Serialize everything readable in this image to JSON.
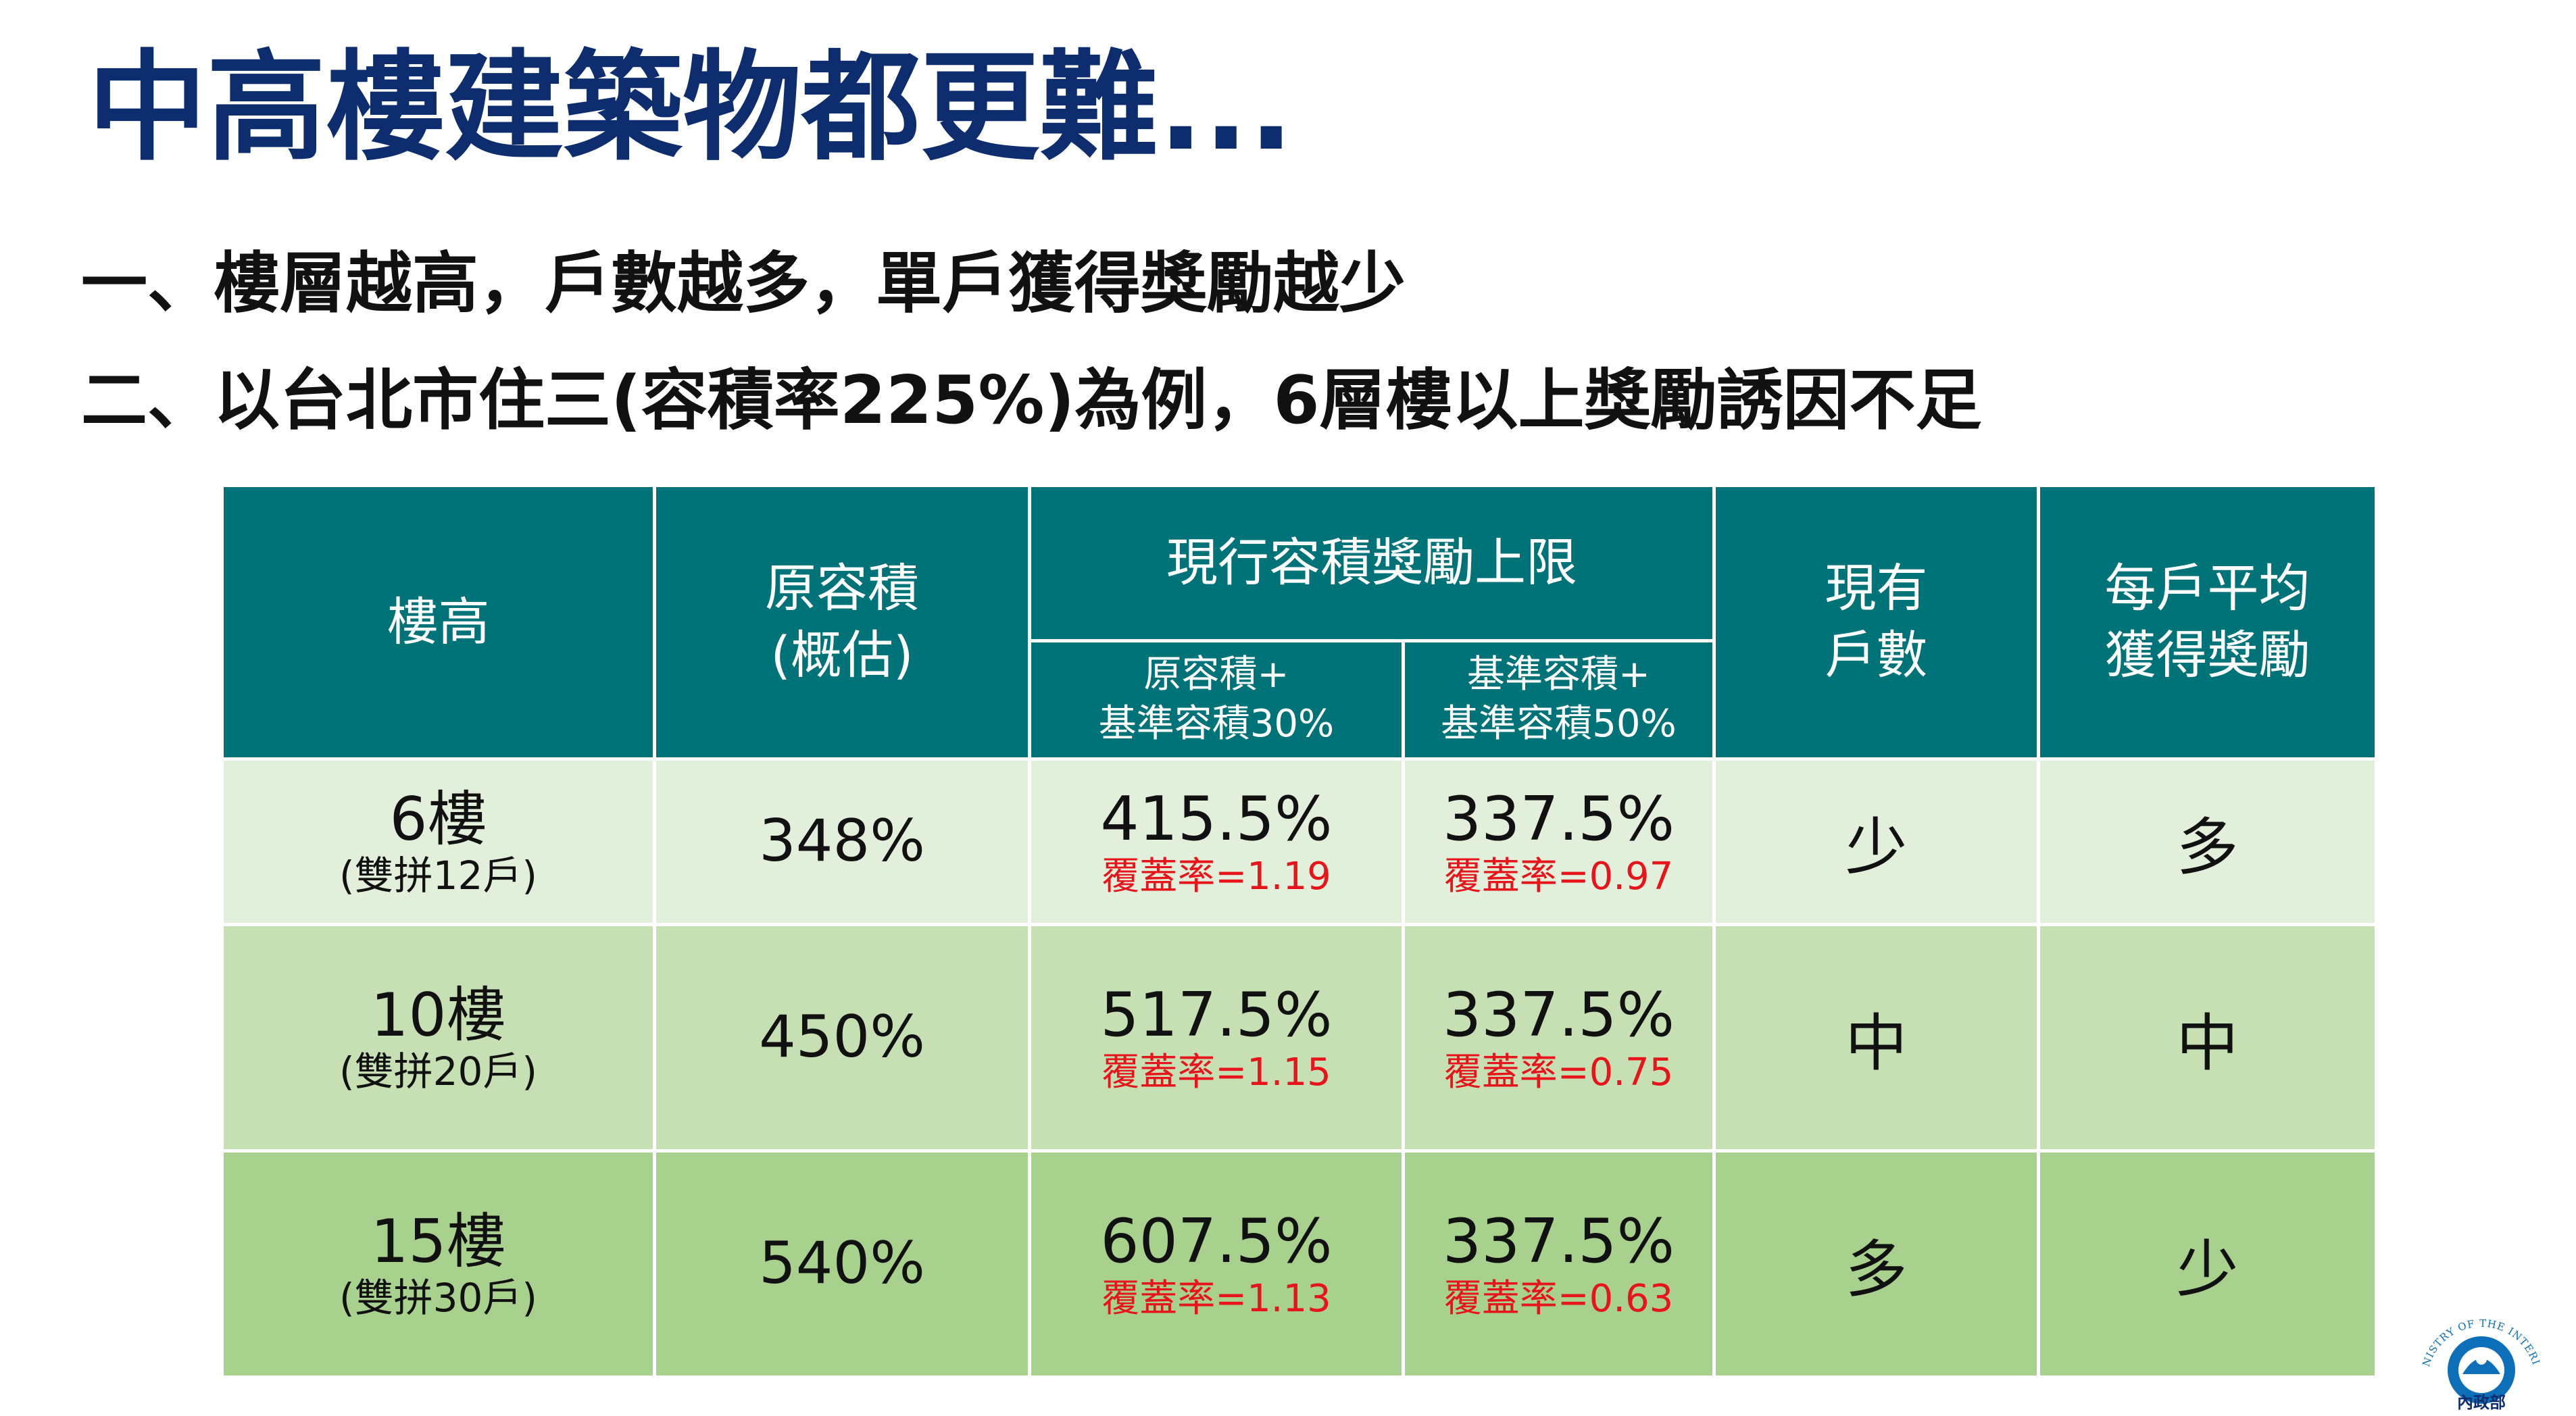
{
  "title": "中高樓建築物都更難...",
  "bullets": [
    "一、樓層越高，戶數越多，單戶獲得獎勵越少",
    "二、以台北市住三(容積率225%)為例，6層樓以上獎勵誘因不足"
  ],
  "table": {
    "headers": {
      "floor": "樓高",
      "original_line1": "原容積",
      "original_line2": "(概估)",
      "bonus_cap": "現行容積獎勵上限",
      "bonus_sub1_line1": "原容積+",
      "bonus_sub1_line2": "基準容積30%",
      "bonus_sub2_line1": "基準容積+",
      "bonus_sub2_line2": "基準容積50%",
      "households_line1": "現有",
      "households_line2": "戶數",
      "avg_line1": "每戶平均",
      "avg_line2": "獲得獎勵"
    },
    "rows": [
      {
        "floor": "6樓",
        "note": "(雙拼12戶)",
        "original": "348%",
        "bonus1": "415.5%",
        "cov1": "覆蓋率=1.19",
        "bonus2": "337.5%",
        "cov2": "覆蓋率=0.97",
        "households": "少",
        "avg": "多"
      },
      {
        "floor": "10樓",
        "note": "(雙拼20戶)",
        "original": "450%",
        "bonus1": "517.5%",
        "cov1": "覆蓋率=1.15",
        "bonus2": "337.5%",
        "cov2": "覆蓋率=0.75",
        "households": "中",
        "avg": "中"
      },
      {
        "floor": "15樓",
        "note": "(雙拼30戶)",
        "original": "540%",
        "bonus1": "607.5%",
        "cov1": "覆蓋率=1.13",
        "bonus2": "337.5%",
        "cov2": "覆蓋率=0.63",
        "households": "多",
        "avg": "少"
      }
    ]
  },
  "logo": {
    "text": "MINISTRY OF THE INTERIOR",
    "chinese": "內政部",
    "colors": {
      "primary": "#0d6fb8",
      "text": "#0d2d6e"
    }
  }
}
